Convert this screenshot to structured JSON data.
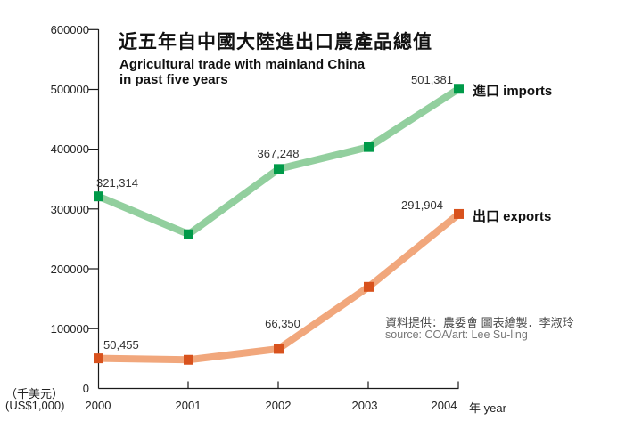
{
  "chart_data": {
    "type": "line",
    "title_zh": "近五年自中國大陸進出口農產品總值",
    "title_en_line1": "Agricultural trade with mainland China",
    "title_en_line2": "in past five years",
    "unit_label_zh": "（千美元）",
    "unit_label_en": "(US$1,000)",
    "zero_label": "0",
    "x_axis_suffix": "年 year",
    "x": [
      2000,
      2001,
      2002,
      2003,
      2004
    ],
    "x_tick_labels": [
      "2000",
      "2001",
      "2002",
      "2003",
      "2004"
    ],
    "y_tick_labels": [
      "600000",
      "500000",
      "400000",
      "300000",
      "200000",
      "100000"
    ],
    "ylim": [
      0,
      600000
    ],
    "grid": "off",
    "legend_position": "right of last data point",
    "series": [
      {
        "name": "imports",
        "label": "進口 imports",
        "marker_color": "#009a49",
        "line_color": "#92cf9e",
        "values": [
          321314,
          258000,
          367248,
          404000,
          501381
        ],
        "labeled_values": {
          "2000": "321,314",
          "2002": "367,248",
          "2004": "501,381"
        }
      },
      {
        "name": "exports",
        "label": "出口 exports",
        "marker_color": "#d8521d",
        "line_color": "#f1a77c",
        "values": [
          50455,
          48000,
          66350,
          170000,
          291904
        ],
        "labeled_values": {
          "2000": "50,455",
          "2002": "66,350",
          "2004": "291,904"
        }
      }
    ]
  },
  "source": {
    "credit_zh": "資料提供：農委會 圖表繪製．李淑玲",
    "credit_en": "source: COA/art: Lee Su-ling"
  }
}
